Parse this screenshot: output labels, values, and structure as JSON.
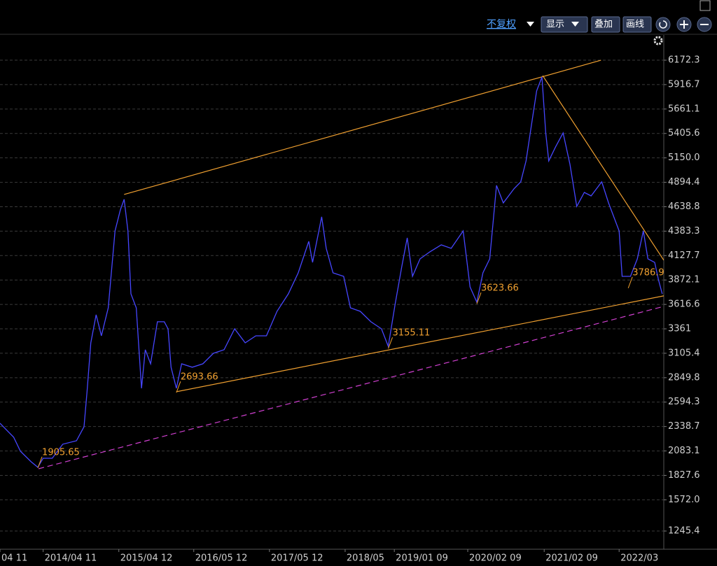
{
  "toolbar": {
    "adjust": "不复权",
    "display": "显示",
    "overlay": "叠加",
    "draw": "画线"
  },
  "chart_data": {
    "type": "line",
    "series": [
      {
        "color": "#4646ff",
        "x": [
          2013.7,
          2013.79,
          2013.88,
          2013.97,
          2014.11,
          2014.2,
          2014.27,
          2014.39,
          2014.53,
          2014.71,
          2014.81,
          2014.85,
          2014.9,
          2014.97,
          2015.04,
          2015.13,
          2015.22,
          2015.29,
          2015.34,
          2015.39,
          2015.43,
          2015.5,
          2015.57,
          2015.62,
          2015.69,
          2015.78,
          2015.87,
          2015.92,
          2015.96,
          2016.03,
          2016.1,
          2016.24,
          2016.38,
          2016.52,
          2016.66,
          2016.8,
          2016.94,
          2017.08,
          2017.22,
          2017.36,
          2017.51,
          2017.64,
          2017.78,
          2017.83,
          2017.95,
          2018.01,
          2018.1,
          2018.24,
          2018.33,
          2018.46,
          2018.6,
          2018.74,
          2018.83,
          2018.92,
          2019.01,
          2019.08,
          2019.15,
          2019.25,
          2019.38,
          2019.53,
          2019.66,
          2019.82,
          2019.91,
          2020.0,
          2020.08,
          2020.17,
          2020.26,
          2020.35,
          2020.49,
          2020.58,
          2020.65,
          2020.72,
          2020.79,
          2020.86,
          2020.91,
          2020.95,
          2021.04,
          2021.14,
          2021.23,
          2021.32,
          2021.42,
          2021.51,
          2021.65,
          2021.74,
          2021.88,
          2021.92,
          2022.03,
          2022.12,
          2022.2,
          2022.26,
          2022.35,
          2022.4,
          2022.45
        ],
        "values": [
          2373,
          2300,
          2227,
          2080,
          1971,
          1912,
          2007,
          2007,
          2154,
          2190,
          2337,
          2703,
          3215,
          3508,
          3288,
          3581,
          4386,
          4606,
          4716,
          4386,
          3727,
          3581,
          2739,
          3142,
          2995,
          3435,
          3435,
          3361,
          2959,
          2739,
          2995,
          2959,
          2995,
          3105,
          3142,
          3361,
          3215,
          3288,
          3288,
          3544,
          3727,
          3947,
          4276,
          4057,
          4533,
          4203,
          3947,
          3910,
          3581,
          3544,
          3435,
          3361,
          3178,
          3618,
          4020,
          4313,
          3910,
          4093,
          4167,
          4240,
          4203,
          4386,
          3800,
          3640,
          3947,
          4093,
          4862,
          4679,
          4826,
          4899,
          5118,
          5484,
          5850,
          5997,
          5411,
          5118,
          5264,
          5411,
          5082,
          4642,
          4789,
          4752,
          4899,
          4679,
          4386,
          3910,
          3910,
          4093,
          4386,
          4093,
          4057,
          3874,
          3727
        ]
      }
    ],
    "lines": [
      {
        "color": "#f0a030",
        "dash": false,
        "x": [
          2015.34,
          2021.64
        ],
        "values": [
          4767,
          6172
        ]
      },
      {
        "color": "#f0a030",
        "dash": false,
        "x": [
          2020.87,
          2022.47
        ],
        "values": [
          6011,
          4079
        ]
      },
      {
        "color": "#f0a030",
        "dash": false,
        "x": [
          2016.03,
          2022.47
        ],
        "values": [
          2703,
          3706
        ]
      },
      {
        "color": "#d040d0",
        "dash": true,
        "x": [
          2014.21,
          2022.47
        ],
        "values": [
          1897,
          3596
        ]
      }
    ],
    "lows": [
      {
        "x": 2014.2,
        "value": 1905.65
      },
      {
        "x": 2016.03,
        "value": 2693.66
      },
      {
        "x": 2018.83,
        "value": 3155.11
      },
      {
        "x": 2020.0,
        "value": 3623.66
      },
      {
        "x": 2022.0,
        "value": 3786.9
      }
    ],
    "low_color": "#f0a030",
    "xlim": [
      2013.7,
      2022.47
    ],
    "xticks": [
      {
        "value": 2013.7,
        "label": "04 11"
      },
      {
        "value": 2014.27,
        "label": "2014/04 11"
      },
      {
        "value": 2015.27,
        "label": "2015/04 12"
      },
      {
        "value": 2016.26,
        "label": "2016/05 12"
      },
      {
        "value": 2017.26,
        "label": "2017/05 12"
      },
      {
        "value": 2018.26,
        "label": "2018/05"
      },
      {
        "value": 2018.91,
        "label": "2019/01 09"
      },
      {
        "value": 2019.88,
        "label": "2020/02 09"
      },
      {
        "value": 2020.89,
        "label": "2021/02 09"
      },
      {
        "value": 2021.88,
        "label": "2022/03"
      }
    ],
    "ylim": [
      1055,
      6436
    ],
    "yticks": [
      6172.3,
      5916.7,
      5661.1,
      5405.6,
      {
        "value": 5150,
        "label": "5150.0"
      },
      4894.4,
      4638.8,
      4383.3,
      4127.7,
      3872.1,
      3616.6,
      3361.0,
      3105.4,
      2849.8,
      2594.3,
      2338.7,
      2083.1,
      1827.6,
      {
        "value": 1572,
        "label": "1572.0"
      },
      1245.4
    ],
    "grid": true
  }
}
